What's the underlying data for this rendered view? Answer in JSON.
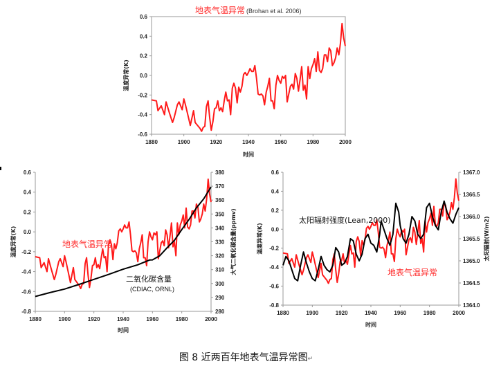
{
  "caption": "图 8 近两百年地表气温异常图",
  "caption_mark": "↵",
  "chart_data": [
    {
      "type": "line",
      "title": "地表气温异常",
      "subtitle": "(Brohan et al. 2006)",
      "xlabel": "时间",
      "ylabel": "温度异常(K)",
      "xlim": [
        1880,
        2000
      ],
      "ylim": [
        -0.6,
        0.6
      ],
      "xticks": [
        1880,
        1900,
        1920,
        1940,
        1960,
        1980,
        2000
      ],
      "yticks": [
        -0.6,
        -0.4,
        -0.2,
        0.0,
        0.2,
        0.4,
        0.6
      ],
      "series": [
        {
          "color": "#ff1a1a",
          "points": [
            [
              1880,
              -0.25
            ],
            [
              1883,
              -0.26
            ],
            [
              1884,
              -0.36
            ],
            [
              1886,
              -0.31
            ],
            [
              1888,
              -0.4
            ],
            [
              1889,
              -0.27
            ],
            [
              1891,
              -0.38
            ],
            [
              1893,
              -0.48
            ],
            [
              1894,
              -0.43
            ],
            [
              1896,
              -0.3
            ],
            [
              1897,
              -0.27
            ],
            [
              1899,
              -0.35
            ],
            [
              1900,
              -0.24
            ],
            [
              1901,
              -0.3
            ],
            [
              1903,
              -0.44
            ],
            [
              1904,
              -0.51
            ],
            [
              1906,
              -0.36
            ],
            [
              1907,
              -0.48
            ],
            [
              1909,
              -0.52
            ],
            [
              1910,
              -0.54
            ],
            [
              1911,
              -0.57
            ],
            [
              1912,
              -0.53
            ],
            [
              1913,
              -0.52
            ],
            [
              1914,
              -0.32
            ],
            [
              1915,
              -0.26
            ],
            [
              1916,
              -0.43
            ],
            [
              1917,
              -0.56
            ],
            [
              1918,
              -0.47
            ],
            [
              1919,
              -0.34
            ],
            [
              1920,
              -0.33
            ],
            [
              1921,
              -0.26
            ],
            [
              1922,
              -0.36
            ],
            [
              1923,
              -0.33
            ],
            [
              1924,
              -0.37
            ],
            [
              1925,
              -0.26
            ],
            [
              1926,
              -0.17
            ],
            [
              1927,
              -0.26
            ],
            [
              1928,
              -0.25
            ],
            [
              1929,
              -0.4
            ],
            [
              1930,
              -0.13
            ],
            [
              1931,
              -0.08
            ],
            [
              1932,
              -0.13
            ],
            [
              1933,
              -0.28
            ],
            [
              1934,
              -0.12
            ],
            [
              1935,
              -0.17
            ],
            [
              1936,
              -0.11
            ],
            [
              1937,
              0.01
            ],
            [
              1938,
              0.03
            ],
            [
              1939,
              0.0
            ],
            [
              1940,
              0.03
            ],
            [
              1941,
              0.07
            ],
            [
              1942,
              0.04
            ],
            [
              1943,
              0.04
            ],
            [
              1944,
              0.1
            ],
            [
              1945,
              -0.03
            ],
            [
              1946,
              -0.19
            ],
            [
              1947,
              -0.2
            ],
            [
              1948,
              -0.19
            ],
            [
              1949,
              -0.21
            ],
            [
              1950,
              -0.3
            ],
            [
              1951,
              -0.17
            ],
            [
              1952,
              -0.11
            ],
            [
              1953,
              -0.03
            ],
            [
              1954,
              -0.26
            ],
            [
              1955,
              -0.26
            ],
            [
              1956,
              -0.34
            ],
            [
              1957,
              -0.1
            ],
            [
              1958,
              0.0
            ],
            [
              1959,
              -0.05
            ],
            [
              1960,
              -0.08
            ],
            [
              1961,
              -0.01
            ],
            [
              1962,
              -0.03
            ],
            [
              1963,
              0.0
            ],
            [
              1964,
              -0.27
            ],
            [
              1965,
              -0.19
            ],
            [
              1966,
              -0.11
            ],
            [
              1967,
              -0.09
            ],
            [
              1968,
              -0.14
            ],
            [
              1969,
              0.02
            ],
            [
              1970,
              -0.03
            ],
            [
              1971,
              -0.16
            ],
            [
              1972,
              -0.04
            ],
            [
              1973,
              0.09
            ],
            [
              1974,
              -0.15
            ],
            [
              1975,
              -0.1
            ],
            [
              1976,
              -0.24
            ],
            [
              1977,
              0.09
            ],
            [
              1978,
              -0.03
            ],
            [
              1979,
              0.07
            ],
            [
              1980,
              0.11
            ],
            [
              1981,
              0.17
            ],
            [
              1982,
              0.04
            ],
            [
              1983,
              0.24
            ],
            [
              1984,
              0.05
            ],
            [
              1985,
              0.03
            ],
            [
              1986,
              0.07
            ],
            [
              1987,
              0.21
            ],
            [
              1988,
              0.21
            ],
            [
              1989,
              0.14
            ],
            [
              1990,
              0.28
            ],
            [
              1991,
              0.25
            ],
            [
              1992,
              0.1
            ],
            [
              1993,
              0.13
            ],
            [
              1994,
              0.18
            ],
            [
              1995,
              0.28
            ],
            [
              1996,
              0.21
            ],
            [
              1997,
              0.33
            ],
            [
              1998,
              0.53
            ],
            [
              1999,
              0.38
            ],
            [
              2000,
              0.3
            ]
          ]
        }
      ]
    },
    {
      "type": "line",
      "xlabel": "时间",
      "ylabel": "温度异常(K)",
      "y2label": "大气二氧化碳含量(ppmv)",
      "xlim": [
        1880,
        2000
      ],
      "ylim": [
        -0.8,
        0.6
      ],
      "y2lim": [
        280,
        380
      ],
      "xticks": [
        1880,
        1900,
        1920,
        1940,
        1960,
        1980,
        2000
      ],
      "yticks": [
        -0.8,
        -0.6,
        -0.4,
        -0.2,
        0.0,
        0.2,
        0.4,
        0.6
      ],
      "y2ticks": [
        280,
        290,
        300,
        310,
        320,
        330,
        340,
        350,
        360,
        370,
        380
      ],
      "annotations": [
        {
          "text": "地表气温异常",
          "color": "#ff1a1a"
        },
        {
          "text": "二氧化碳含量",
          "color": "#111111"
        },
        {
          "text": "(CDIAC, ORNL)",
          "color": "#111111"
        }
      ],
      "series": [
        {
          "color": "#ff1a1a",
          "axis": "y",
          "use_points_of": 0
        },
        {
          "color": "#000000",
          "axis": "y2",
          "points": [
            [
              1880,
              290.7
            ],
            [
              1890,
              293.5
            ],
            [
              1900,
              296.0
            ],
            [
              1910,
              299.4
            ],
            [
              1920,
              303.0
            ],
            [
              1930,
              306.5
            ],
            [
              1940,
              310.3
            ],
            [
              1950,
              313.5
            ],
            [
              1958,
              316.9
            ],
            [
              1960,
              317.0
            ],
            [
              1965,
              320.0
            ],
            [
              1970,
              325.7
            ],
            [
              1975,
              331.1
            ],
            [
              1980,
              338.8
            ],
            [
              1985,
              346.1
            ],
            [
              1990,
              354.4
            ],
            [
              1995,
              360.9
            ],
            [
              2000,
              369.5
            ]
          ]
        }
      ]
    },
    {
      "type": "line",
      "xlabel": "时间",
      "ylabel": "温度异常(K)",
      "y2label": "太阳辐射(W/m2)",
      "xlim": [
        1880,
        2000
      ],
      "ylim": [
        -0.8,
        0.6
      ],
      "y2lim": [
        1364.0,
        1367.0
      ],
      "xticks": [
        1880,
        1900,
        1920,
        1940,
        1960,
        1980,
        2000
      ],
      "yticks": [
        -0.8,
        -0.6,
        -0.4,
        -0.2,
        0.0,
        0.2,
        0.4,
        0.6
      ],
      "y2ticks": [
        1364.0,
        1364.5,
        1365.0,
        1365.5,
        1366.0,
        1366.5,
        1367.0
      ],
      "annotations": [
        {
          "text": "太阳辐射强度(Lean,2000)",
          "color": "#111111"
        },
        {
          "text": "地表气温异常",
          "color": "#ff1a1a"
        }
      ],
      "series": [
        {
          "color": "#ff1a1a",
          "axis": "y",
          "use_points_of": 0
        },
        {
          "color": "#000000",
          "axis": "y2",
          "points": [
            [
              1880,
              1364.9
            ],
            [
              1882,
              1365.1
            ],
            [
              1884,
              1365.0
            ],
            [
              1886,
              1364.8
            ],
            [
              1888,
              1364.6
            ],
            [
              1890,
              1364.55
            ],
            [
              1892,
              1364.9
            ],
            [
              1894,
              1365.2
            ],
            [
              1896,
              1364.95
            ],
            [
              1898,
              1364.75
            ],
            [
              1900,
              1364.6
            ],
            [
              1902,
              1364.55
            ],
            [
              1904,
              1364.8
            ],
            [
              1906,
              1365.1
            ],
            [
              1908,
              1364.9
            ],
            [
              1910,
              1364.8
            ],
            [
              1912,
              1364.75
            ],
            [
              1914,
              1364.9
            ],
            [
              1916,
              1365.3
            ],
            [
              1918,
              1365.2
            ],
            [
              1920,
              1364.9
            ],
            [
              1922,
              1364.95
            ],
            [
              1924,
              1365.1
            ],
            [
              1926,
              1365.5
            ],
            [
              1928,
              1365.45
            ],
            [
              1930,
              1365.15
            ],
            [
              1932,
              1365.0
            ],
            [
              1934,
              1365.15
            ],
            [
              1936,
              1365.5
            ],
            [
              1938,
              1365.6
            ],
            [
              1940,
              1365.4
            ],
            [
              1942,
              1365.35
            ],
            [
              1944,
              1365.2
            ],
            [
              1946,
              1365.6
            ],
            [
              1947,
              1365.9
            ],
            [
              1949,
              1365.7
            ],
            [
              1951,
              1365.5
            ],
            [
              1953,
              1365.35
            ],
            [
              1955,
              1365.6
            ],
            [
              1957,
              1366.3
            ],
            [
              1959,
              1366.1
            ],
            [
              1960,
              1365.8
            ],
            [
              1962,
              1365.5
            ],
            [
              1964,
              1365.4
            ],
            [
              1966,
              1365.6
            ],
            [
              1968,
              1366.0
            ],
            [
              1970,
              1365.9
            ],
            [
              1972,
              1365.6
            ],
            [
              1974,
              1365.5
            ],
            [
              1976,
              1365.6
            ],
            [
              1978,
              1366.2
            ],
            [
              1980,
              1366.3
            ],
            [
              1982,
              1366.0
            ],
            [
              1984,
              1365.8
            ],
            [
              1986,
              1365.7
            ],
            [
              1988,
              1366.1
            ],
            [
              1990,
              1366.35
            ],
            [
              1992,
              1366.1
            ],
            [
              1994,
              1365.95
            ],
            [
              1996,
              1365.85
            ],
            [
              1998,
              1366.05
            ],
            [
              2000,
              1366.2
            ]
          ]
        }
      ]
    }
  ],
  "chart1_labels": {
    "title": "地表气温异常",
    "subtitle": "(Brohan et al. 2006)"
  },
  "chart2_labels": {
    "red": "地表气温异常",
    "black": "二氧化碳含量",
    "black_sub": "(CDIAC, ORNL)"
  },
  "chart3_labels": {
    "black": "太阳辐射强度(Lean,2000)",
    "red": "地表气温异常"
  }
}
